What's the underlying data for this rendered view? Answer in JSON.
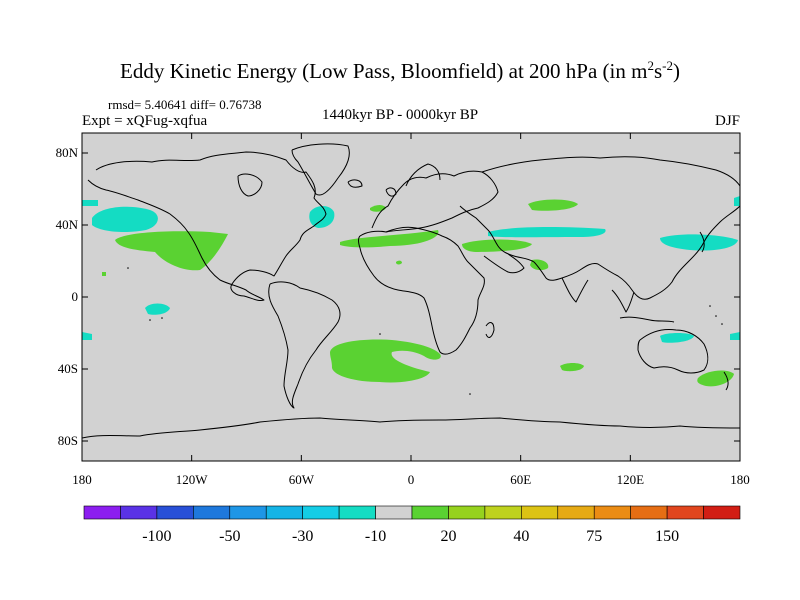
{
  "title": {
    "main": "Eddy Kinetic Energy (Low Pass, Bloomfield) at 200 hPa (in m",
    "sup1": "2",
    "mid": "s",
    "sup2": "-2",
    "end": ")"
  },
  "stats": "rmsd= 5.40641 diff= 0.76738",
  "experiment": "Expt = xQFug-xqfua",
  "period": "1440kyr BP - 0000kyr BP",
  "season": "DJF",
  "axes": {
    "lat_labels": [
      "80N",
      "40N",
      "0",
      "40S",
      "80S"
    ],
    "lon_labels": [
      "180",
      "120W",
      "60W",
      "0",
      "60E",
      "120E",
      "180"
    ]
  },
  "colorbar": {
    "colors": [
      "#8c1ef0",
      "#5a32e6",
      "#2850d7",
      "#1e78dc",
      "#1e96e6",
      "#14b4e6",
      "#14cde6",
      "#14dcc3",
      "#d2d2d2",
      "#5ad232",
      "#96d21e",
      "#bed21e",
      "#dcc314",
      "#e6aa14",
      "#eb8c14",
      "#e66e14",
      "#e1461e",
      "#d21e14"
    ],
    "labels": [
      "-100",
      "-50",
      "-30",
      "-10",
      "20",
      "40",
      "75",
      "150"
    ],
    "label_boundaries": [
      2,
      4,
      6,
      8,
      10,
      12,
      14,
      16
    ]
  },
  "colors": {
    "background": "#d2d2d2",
    "negative_anomaly": "#14dcc3",
    "positive_anomaly": "#5ad232",
    "coastline": "#000000"
  }
}
